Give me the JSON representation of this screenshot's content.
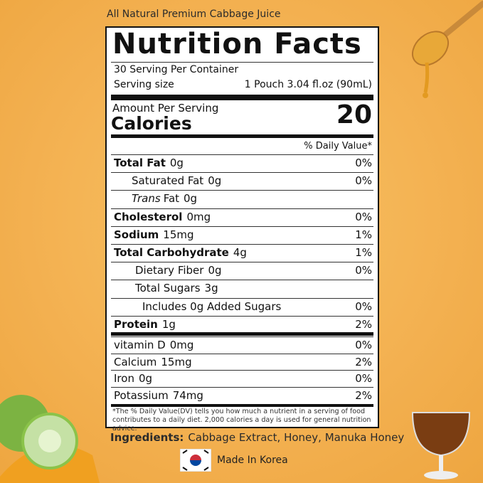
{
  "header": {
    "title": "All Natural Premium Cabbage Juice"
  },
  "label": {
    "title": "Nutrition Facts",
    "servings": "30 Serving Per Container",
    "serving_size_label": "Serving size",
    "serving_size": "1 Pouch 3.04 fl.oz (90mL)",
    "amount_per_serving": "Amount Per Serving",
    "calories_label": "Calories",
    "calories": "20",
    "dv_header": "% Daily Value*",
    "rows": [
      {
        "name": "Total Fat",
        "amount": "0g",
        "dv": "0%"
      },
      {
        "name": "Saturated Fat",
        "amount": "0g",
        "dv": "0%"
      },
      {
        "italic": "Trans",
        "name": "Fat",
        "amount": "0g"
      },
      {
        "name": "Cholesterol",
        "amount": "0mg",
        "dv": "0%"
      },
      {
        "name": "Sodium",
        "amount": "15mg",
        "dv": "1%"
      },
      {
        "name": "Total Carbohydrate",
        "amount": "4g",
        "dv": "1%"
      },
      {
        "name": "Dietary Fiber",
        "amount": "0g",
        "dv": "0%"
      },
      {
        "name": "Total Sugars",
        "amount": "3g"
      },
      {
        "name": "Includes 0g Added Sugars",
        "dv": "0%"
      },
      {
        "name": "Protein",
        "amount": "1g",
        "dv": "2%"
      }
    ],
    "vitamins": [
      {
        "name": "vitamin D",
        "amount": "0mg",
        "dv": "0%"
      },
      {
        "name": "Calcium",
        "amount": "15mg",
        "dv": "2%"
      },
      {
        "name": "Iron",
        "amount": "0g",
        "dv": "0%"
      },
      {
        "name": "Potassium",
        "amount": "74mg",
        "dv": "2%"
      }
    ],
    "footnote": "*The % Daily Value(DV) tells you how much a nutrient in a serving of food contributes to a daily diet. 2,000 calories a day is used for general nutrition advice."
  },
  "ingredients": {
    "label": "Ingredients:",
    "text": "Cabbage Extract, Honey, Manuka Honey"
  },
  "origin": "Made In Korea"
}
